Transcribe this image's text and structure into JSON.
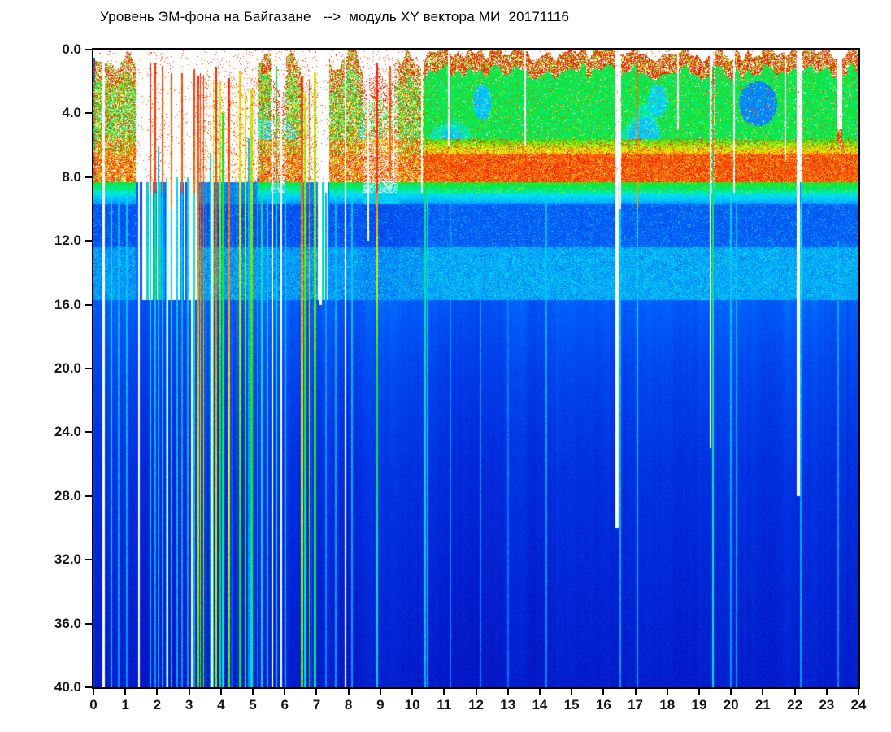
{
  "chart_data": {
    "type": "heatmap",
    "title": "Уровень ЭМ-фона на Байгазане   -->  модуль XY вектора МИ  20171116",
    "subtitle": "",
    "xlabel": "",
    "ylabel": "",
    "x_axis": {
      "min": 0,
      "max": 24,
      "unit": "hour of day",
      "tick_labels": [
        "0",
        "1",
        "2",
        "3",
        "4",
        "5",
        "6",
        "7",
        "8",
        "9",
        "10",
        "11",
        "12",
        "13",
        "14",
        "15",
        "16",
        "17",
        "18",
        "19",
        "20",
        "21",
        "22",
        "23",
        "24"
      ]
    },
    "y_axis": {
      "min": 0,
      "max": 40,
      "inverted": true,
      "tick_labels": [
        "0.0",
        "4.0",
        "8.0",
        "12.0",
        "16.0",
        "20.0",
        "24.0",
        "28.0",
        "32.0",
        "36.0",
        "40.0"
      ]
    },
    "colormap": {
      "threshold": 0.09,
      "below_threshold_color": "#ffffff",
      "stops": [
        [
          0.1,
          [
            30,
            30,
            160
          ]
        ],
        [
          0.18,
          [
            5,
            20,
            195
          ]
        ],
        [
          0.26,
          [
            0,
            55,
            230
          ]
        ],
        [
          0.34,
          [
            0,
            95,
            250
          ]
        ],
        [
          0.42,
          [
            0,
            170,
            255
          ]
        ],
        [
          0.48,
          [
            0,
            230,
            250
          ]
        ],
        [
          0.54,
          [
            0,
            235,
            120
          ]
        ],
        [
          0.6,
          [
            30,
            225,
            20
          ]
        ],
        [
          0.68,
          [
            160,
            240,
            0
          ]
        ],
        [
          0.74,
          [
            245,
            238,
            0
          ]
        ],
        [
          0.82,
          [
            255,
            140,
            0
          ]
        ],
        [
          0.9,
          [
            255,
            40,
            0
          ]
        ],
        [
          1.0,
          [
            220,
            0,
            0
          ]
        ]
      ]
    },
    "bands": [
      {
        "freq": [
          0,
          1
        ],
        "desc": "white above signal top edge, sparse red dots"
      },
      {
        "freq": [
          1,
          5.6
        ],
        "desc": "green active body with cyan patches, red speckled cap",
        "value": 0.57
      },
      {
        "freq": [
          5.6,
          6.55
        ],
        "desc": "green-yellow-red transition",
        "value": 0.7
      },
      {
        "freq": [
          6.55,
          8.3
        ],
        "desc": "intense red band",
        "value": 0.88
      },
      {
        "freq": [
          8.3,
          9.7
        ],
        "desc": "green to cyan transition edge",
        "value": 0.55
      },
      {
        "freq": [
          9.7,
          12.4
        ],
        "desc": "blue with cyan speckle",
        "value": 0.34
      },
      {
        "freq": [
          12.4,
          15.7
        ],
        "desc": "lighter cyan band",
        "value": 0.42
      },
      {
        "freq": [
          15.7,
          40
        ],
        "desc": "dark blue, darkens with depth",
        "value": 0.25
      }
    ],
    "activity_segments": [
      [
        0.0,
        1.32,
        "morning"
      ],
      [
        1.32,
        1.72,
        "quiet"
      ],
      [
        1.72,
        2.25,
        "semi2"
      ],
      [
        2.25,
        3.25,
        "quiet"
      ],
      [
        3.25,
        5.15,
        "storm"
      ],
      [
        5.15,
        5.55,
        "morning"
      ],
      [
        5.55,
        6.05,
        "semi"
      ],
      [
        6.05,
        6.5,
        "morning"
      ],
      [
        6.5,
        7.05,
        "storm"
      ],
      [
        7.05,
        7.4,
        "quiet"
      ],
      [
        7.4,
        8.45,
        "morning"
      ],
      [
        8.45,
        9.55,
        "semi"
      ],
      [
        9.55,
        10.35,
        "morning"
      ],
      [
        10.35,
        16.4,
        "day"
      ],
      [
        16.4,
        16.55,
        "quiet"
      ],
      [
        16.55,
        19.35,
        "day"
      ],
      [
        19.35,
        19.5,
        "semi"
      ],
      [
        19.5,
        22.05,
        "day"
      ],
      [
        22.05,
        22.25,
        "quiet"
      ],
      [
        22.25,
        24.01,
        "day"
      ]
    ],
    "storm_segments": [
      [
        3.25,
        5.15,
        0
      ],
      [
        6.5,
        7.05,
        1
      ]
    ],
    "gaps": [
      [
        0.33,
        0.07,
        0,
        40
      ],
      [
        1.44,
        0.045,
        0,
        40
      ],
      [
        2.33,
        0.04,
        8,
        40
      ],
      [
        3.08,
        0.04,
        8,
        40
      ],
      [
        3.72,
        0.04,
        0,
        40
      ],
      [
        5.62,
        0.05,
        0,
        40
      ],
      [
        5.9,
        0.05,
        0,
        40
      ],
      [
        7.12,
        0.07,
        0,
        16
      ],
      [
        7.9,
        0.04,
        0,
        40
      ],
      [
        8.62,
        0.05,
        0,
        12
      ],
      [
        9.42,
        0.05,
        0,
        8
      ],
      [
        10.3,
        0.05,
        0,
        9
      ],
      [
        11.15,
        0.035,
        0,
        6
      ],
      [
        13.55,
        0.03,
        0,
        6
      ],
      [
        16.42,
        0.1,
        0,
        30
      ],
      [
        18.33,
        0.03,
        0,
        5
      ],
      [
        19.36,
        0.04,
        0,
        25
      ],
      [
        20.1,
        0.04,
        0,
        9
      ],
      [
        21.7,
        0.035,
        0,
        7
      ],
      [
        22.1,
        0.09,
        0,
        28
      ],
      [
        23.35,
        0.03,
        0,
        5
      ]
    ],
    "stripes": [
      [
        0.03,
        0.05,
        0.5,
        40,
        0.3,
        0.24
      ],
      [
        0.55,
        0.035,
        8,
        40,
        0.48,
        0.42
      ],
      [
        0.78,
        0.02,
        8,
        40,
        0.44,
        0.4
      ],
      [
        1.05,
        0.03,
        8,
        40,
        0.46,
        0.4
      ],
      [
        1.78,
        0.035,
        0.8,
        9,
        0.88,
        0.86
      ],
      [
        1.78,
        0.035,
        9,
        40,
        0.5,
        0.42
      ],
      [
        1.93,
        0.03,
        0.8,
        9,
        0.9,
        0.88
      ],
      [
        1.93,
        0.03,
        9,
        40,
        0.46,
        0.4
      ],
      [
        2.05,
        0.02,
        6,
        40,
        0.45,
        0.42
      ],
      [
        2.18,
        0.025,
        1,
        9,
        0.87,
        0.84
      ],
      [
        2.18,
        0.025,
        9,
        40,
        0.46,
        0.42
      ],
      [
        2.3,
        0.02,
        8,
        40,
        0.48,
        0.44
      ],
      [
        2.45,
        0.025,
        1.5,
        10,
        0.88,
        0.82
      ],
      [
        2.45,
        0.025,
        10,
        40,
        0.5,
        0.42
      ],
      [
        2.62,
        0.02,
        8,
        40,
        0.46,
        0.42
      ],
      [
        2.78,
        0.025,
        1.5,
        9,
        0.88,
        0.86
      ],
      [
        2.78,
        0.025,
        9,
        40,
        0.44,
        0.4
      ],
      [
        2.95,
        0.02,
        8,
        40,
        0.46,
        0.4
      ],
      [
        3.16,
        0.025,
        1.2,
        9,
        0.9,
        0.85
      ],
      [
        3.16,
        0.025,
        9,
        40,
        0.5,
        0.42
      ],
      [
        5.28,
        0.05,
        1,
        12,
        0.56,
        0.52
      ],
      [
        5.28,
        0.05,
        12,
        40,
        0.52,
        0.46
      ],
      [
        5.45,
        0.03,
        8,
        40,
        0.46,
        0.42
      ],
      [
        5.75,
        0.04,
        1,
        40,
        0.55,
        0.44
      ],
      [
        6.02,
        0.03,
        8,
        40,
        0.46,
        0.42
      ],
      [
        7.3,
        0.03,
        9,
        40,
        0.42,
        0.38
      ],
      [
        7.6,
        0.03,
        9,
        40,
        0.44,
        0.4
      ],
      [
        8.12,
        0.03,
        9,
        40,
        0.46,
        0.4
      ],
      [
        8.9,
        0.035,
        0.8,
        9,
        0.92,
        0.9
      ],
      [
        8.9,
        0.035,
        9,
        20,
        0.82,
        0.6
      ],
      [
        8.9,
        0.035,
        20,
        40,
        0.6,
        0.46
      ],
      [
        9.3,
        0.03,
        1,
        8,
        0.87,
        0.84
      ],
      [
        10.4,
        0.03,
        1,
        24,
        0.58,
        0.5
      ],
      [
        10.4,
        0.03,
        24,
        40,
        0.5,
        0.44
      ],
      [
        10.47,
        0.02,
        9,
        40,
        0.46,
        0.42
      ],
      [
        11.2,
        0.02,
        9,
        40,
        0.4,
        0.36
      ],
      [
        12.15,
        0.02,
        14,
        40,
        0.4,
        0.36
      ],
      [
        13.0,
        0.02,
        14,
        40,
        0.38,
        0.35
      ],
      [
        14.2,
        0.025,
        9,
        40,
        0.44,
        0.38
      ],
      [
        16.52,
        0.025,
        10,
        40,
        0.46,
        0.4
      ],
      [
        17.05,
        0.025,
        1,
        10,
        0.85,
        0.8
      ],
      [
        17.05,
        0.025,
        10,
        40,
        0.46,
        0.4
      ],
      [
        19.43,
        0.03,
        1,
        40,
        0.56,
        0.48
      ],
      [
        20.0,
        0.03,
        9,
        40,
        0.46,
        0.4
      ],
      [
        20.17,
        0.02,
        9,
        40,
        0.44,
        0.4
      ],
      [
        22.2,
        0.02,
        10,
        40,
        0.44,
        0.4
      ],
      [
        23.35,
        0.02,
        12,
        40,
        0.42,
        0.38
      ]
    ],
    "patches": [
      [
        20.85,
        3.4,
        0.6,
        1.4,
        0.385
      ],
      [
        12.2,
        3.3,
        0.28,
        1.1,
        0.45
      ],
      [
        17.7,
        3.2,
        0.3,
        1.0,
        0.47
      ]
    ]
  }
}
